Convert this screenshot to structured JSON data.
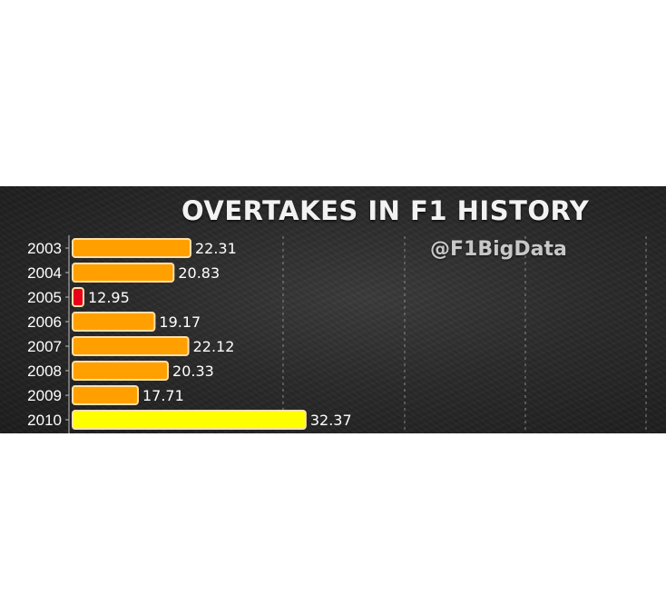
{
  "chart_data": {
    "type": "bar",
    "orientation": "horizontal",
    "title": "OVERTAKES IN F1 HISTORY",
    "watermark": "@F1BigData",
    "categories": [
      "2003",
      "2004",
      "2005",
      "2006",
      "2007",
      "2008",
      "2009",
      "2010"
    ],
    "values": [
      22.31,
      20.83,
      12.95,
      19.17,
      22.12,
      20.33,
      17.71,
      32.37
    ],
    "value_labels": [
      "22.31",
      "20.83",
      "12.95",
      "19.17",
      "22.12",
      "20.33",
      "17.71",
      "32.37"
    ],
    "xlim": [
      12.0,
      35.0
    ],
    "grid": "vertical dashed",
    "colors": {
      "default_bar": "#ffa000",
      "min_bar": "#e8001c",
      "max_bar": "#ffff00",
      "bar_outline": "#ffe0a8",
      "background": "#2b2b2b",
      "gridline": "#8a8a8a"
    }
  }
}
